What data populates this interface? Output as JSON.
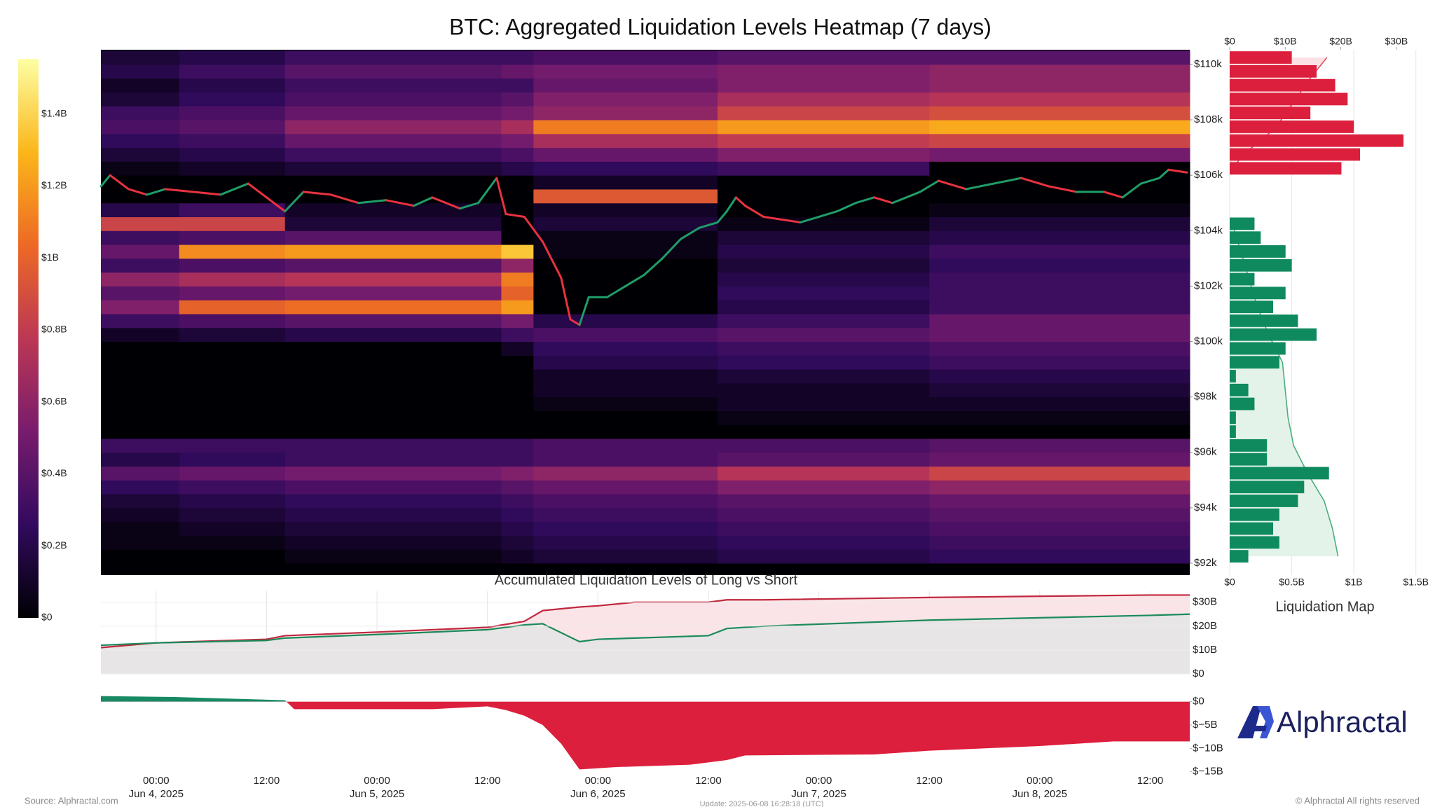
{
  "chart_data": [
    {
      "type": "heatmap",
      "title": "BTC: Aggregated Liquidation Levels Heatmap (7 days)",
      "colormap": [
        "#000004",
        "#320a5e",
        "#781c6d",
        "#bc3754",
        "#ed6925",
        "#fbb61a",
        "#fcffa4"
      ],
      "clim": [
        0,
        1.553
      ],
      "cticks": [
        {
          "value": 0,
          "label": "$0"
        },
        {
          "value": 0.2,
          "label": "$0.2B"
        },
        {
          "value": 0.4,
          "label": "$0.4B"
        },
        {
          "value": 0.6,
          "label": "$0.6B"
        },
        {
          "value": 0.8,
          "label": "$0.8B"
        },
        {
          "value": 1,
          "label": "$1B"
        },
        {
          "value": 1.2,
          "label": "$1.2B"
        },
        {
          "value": 1.4,
          "label": "$1.4B"
        }
      ],
      "xlim": [
        -6,
        112.3
      ],
      "ylim": [
        91.57,
        110.53
      ],
      "yticks": [
        {
          "value": 92,
          "label": "$92k"
        },
        {
          "value": 94,
          "label": "$94k"
        },
        {
          "value": 96,
          "label": "$96k"
        },
        {
          "value": 98,
          "label": "$98k"
        },
        {
          "value": 100,
          "label": "$100k"
        },
        {
          "value": 102,
          "label": "$102k"
        },
        {
          "value": 104,
          "label": "$104k"
        },
        {
          "value": 106,
          "label": "$106k"
        },
        {
          "value": 108,
          "label": "$108k"
        },
        {
          "value": 110,
          "label": "$110k"
        }
      ],
      "x_edges": [
        -6,
        2.5,
        14,
        37.5,
        41,
        61,
        84,
        112.3
      ],
      "price_bins": [
        92,
        92.5,
        93,
        93.5,
        94,
        94.5,
        95,
        95.5,
        96,
        96.5,
        97,
        97.5,
        98,
        98.5,
        99,
        99.5,
        100,
        100.5,
        101,
        101.5,
        102,
        102.5,
        103,
        103.5,
        104,
        104.5,
        105,
        105.5,
        106,
        106.5,
        107,
        107.5,
        108,
        108.5,
        109,
        109.5,
        110,
        110.5
      ],
      "values": [
        [
          0,
          0,
          0.05,
          0.1,
          0.15,
          0.2,
          0.25
        ],
        [
          0.05,
          0.05,
          0.1,
          0.15,
          0.2,
          0.25,
          0.3
        ],
        [
          0.05,
          0.1,
          0.15,
          0.2,
          0.25,
          0.3,
          0.35
        ],
        [
          0.1,
          0.15,
          0.2,
          0.25,
          0.3,
          0.35,
          0.4
        ],
        [
          0.15,
          0.2,
          0.25,
          0.3,
          0.35,
          0.4,
          0.45
        ],
        [
          0.25,
          0.3,
          0.35,
          0.4,
          0.45,
          0.55,
          0.6
        ],
        [
          0.4,
          0.45,
          0.5,
          0.55,
          0.6,
          0.75,
          0.85
        ],
        [
          0.2,
          0.25,
          0.3,
          0.3,
          0.35,
          0.4,
          0.45
        ],
        [
          0.3,
          0.3,
          0.3,
          0.3,
          0.35,
          0.35,
          0.4
        ],
        [
          0,
          0,
          0,
          0,
          0,
          0,
          0
        ],
        [
          0,
          0,
          0,
          0,
          0,
          0.05,
          0.05
        ],
        [
          0,
          0,
          0,
          0,
          0.05,
          0.1,
          0.1
        ],
        [
          0,
          0,
          0,
          0,
          0.1,
          0.1,
          0.15
        ],
        [
          0,
          0,
          0,
          0,
          0.1,
          0.15,
          0.2
        ],
        [
          0,
          0,
          0,
          0,
          0.2,
          0.25,
          0.3
        ],
        [
          0,
          0,
          0,
          0.1,
          0.25,
          0.3,
          0.35
        ],
        [
          0.1,
          0.15,
          0.2,
          0.3,
          0.35,
          0.4,
          0.45
        ],
        [
          0.3,
          0.35,
          0.4,
          0.5,
          0.2,
          0.3,
          0.45
        ],
        [
          0.55,
          1.0,
          1.05,
          1.2,
          0,
          0.2,
          0.3
        ],
        [
          0.4,
          0.45,
          0.5,
          1.0,
          0,
          0.25,
          0.3
        ],
        [
          0.6,
          0.7,
          0.75,
          1.1,
          0,
          0.2,
          0.3
        ],
        [
          0.3,
          0.35,
          0.4,
          0.6,
          0,
          0.15,
          0.25
        ],
        [
          0.45,
          1.15,
          1.2,
          1.35,
          0.05,
          0.2,
          0.3
        ],
        [
          0.3,
          0.35,
          0.4,
          0,
          0.05,
          0.15,
          0.2
        ],
        [
          0.85,
          0.85,
          0.15,
          0,
          0.15,
          0.05,
          0.15
        ],
        [
          0.2,
          0.3,
          0.1,
          0,
          0.1,
          0,
          0.05
        ],
        [
          0,
          0,
          0,
          0,
          0.95,
          0,
          0
        ],
        [
          0,
          0,
          0,
          0,
          0.1,
          0,
          0
        ],
        [
          0.05,
          0.1,
          0.15,
          0.2,
          0.25,
          0.3,
          0
        ],
        [
          0.15,
          0.2,
          0.3,
          0.35,
          0.45,
          0.55,
          0.5
        ],
        [
          0.25,
          0.3,
          0.45,
          0.5,
          0.7,
          0.8,
          0.85
        ],
        [
          0.35,
          0.4,
          0.6,
          0.7,
          1.1,
          1.2,
          1.25
        ],
        [
          0.3,
          0.35,
          0.45,
          0.5,
          0.6,
          0.85,
          0.9
        ],
        [
          0.15,
          0.25,
          0.35,
          0.4,
          0.55,
          0.7,
          0.75
        ],
        [
          0.1,
          0.2,
          0.3,
          0.3,
          0.45,
          0.55,
          0.6
        ],
        [
          0.2,
          0.3,
          0.4,
          0.45,
          0.5,
          0.55,
          0.6
        ],
        [
          0.15,
          0.2,
          0.3,
          0.3,
          0.35,
          0.4,
          0.4
        ]
      ],
      "price": {
        "up_color": "#1f9d6a",
        "down_color": "#e8323f",
        "x": [
          -6,
          -5,
          -3,
          -1,
          1,
          4,
          7,
          10,
          12,
          14,
          16,
          19,
          22,
          25,
          28,
          30,
          33,
          35,
          37,
          38,
          40,
          42,
          44,
          45,
          46,
          47,
          49,
          51,
          53,
          55,
          57,
          59,
          61,
          62,
          63,
          64,
          66,
          68,
          70,
          72,
          74,
          76,
          78,
          80,
          83,
          85,
          88,
          91,
          94,
          97,
          100,
          103,
          105,
          107,
          109,
          110,
          112
        ],
        "values": [
          105.6,
          106.0,
          105.5,
          105.3,
          105.5,
          105.4,
          105.3,
          105.7,
          105.2,
          104.7,
          105.4,
          105.3,
          105.0,
          105.1,
          104.9,
          105.2,
          104.8,
          105.0,
          105.9,
          104.6,
          104.5,
          103.6,
          102.3,
          100.8,
          100.6,
          101.6,
          101.6,
          102.0,
          102.4,
          103.0,
          103.7,
          104.1,
          104.3,
          104.7,
          105.2,
          104.9,
          104.5,
          104.4,
          104.3,
          104.5,
          104.7,
          105.0,
          105.2,
          105.0,
          105.4,
          105.8,
          105.5,
          105.7,
          105.9,
          105.6,
          105.4,
          105.4,
          105.2,
          105.7,
          105.9,
          106.2,
          106.1
        ]
      }
    },
    {
      "type": "bar",
      "title": "Liquidation Map",
      "xlim": [
        0,
        1.62
      ],
      "xticks": [
        {
          "value": 0,
          "label": "$0"
        },
        {
          "value": 0.5,
          "label": "$0.5B"
        },
        {
          "value": 1,
          "label": "$1B"
        },
        {
          "value": 1.5,
          "label": "$1.5B"
        }
      ],
      "x2lim": [
        0,
        36.2
      ],
      "x2ticks": [
        {
          "value": 0,
          "label": "$0"
        },
        {
          "value": 10,
          "label": "$10B"
        },
        {
          "value": 20,
          "label": "$20B"
        },
        {
          "value": 30,
          "label": "$30B"
        }
      ],
      "short_bars": {
        "color": "#dc1f3c",
        "prices": [
          106.25,
          106.75,
          107.25,
          107.75,
          108.25,
          108.75,
          109.25,
          109.75,
          110.25
        ],
        "values": [
          0.9,
          1.05,
          1.4,
          1.0,
          0.65,
          0.95,
          0.85,
          0.7,
          0.5
        ]
      },
      "long_bars": {
        "color": "#0f8a5f",
        "prices": [
          104.25,
          103.75,
          103.25,
          102.75,
          102.25,
          101.75,
          101.25,
          100.75,
          100.25,
          99.75,
          99.25,
          98.75,
          98.25,
          97.75,
          97.25,
          96.75,
          96.25,
          95.75,
          95.25,
          94.75,
          94.25,
          93.75,
          93.25,
          92.75,
          92.25
        ],
        "values": [
          0.2,
          0.25,
          0.45,
          0.5,
          0.2,
          0.45,
          0.35,
          0.55,
          0.7,
          0.45,
          0.4,
          0.05,
          0.15,
          0.2,
          0.05,
          0.05,
          0.3,
          0.3,
          0.8,
          0.6,
          0.55,
          0.4,
          0.35,
          0.4,
          0.15
        ]
      },
      "short_cumulative": {
        "color": "#e05060",
        "fill": "#fbe1e4",
        "prices": [
          106.25,
          106.75,
          107.25,
          107.75,
          108.25,
          108.75,
          109.25,
          109.75,
          110.25
        ],
        "values": [
          0.5,
          2.5,
          5.5,
          8.5,
          10,
          12,
          13.5,
          15.5,
          17.5
        ]
      },
      "long_cumulative": {
        "color": "#4cae7d",
        "fill": "#e3f3ea",
        "prices": [
          104.25,
          103.25,
          102.25,
          101.25,
          100.25,
          99.25,
          98.25,
          97.25,
          96.25,
          95.25,
          94.25,
          93.25,
          92.25
        ],
        "values": [
          0.5,
          2,
          3.5,
          5,
          7,
          9.5,
          10,
          10.5,
          11.5,
          14,
          17,
          18.5,
          19.5
        ]
      }
    },
    {
      "type": "line",
      "title": "Accumulated Liquidation Levels of Long vs Short",
      "ylim": [
        0,
        34.6
      ],
      "yticks": [
        {
          "value": 0,
          "label": "$0"
        },
        {
          "value": 10,
          "label": "$10B"
        },
        {
          "value": 20,
          "label": "$20B"
        },
        {
          "value": 30,
          "label": "$30B"
        }
      ],
      "x": [
        -6,
        0,
        12,
        14,
        24,
        36,
        40,
        42,
        46,
        48,
        52,
        60,
        62,
        66,
        84,
        96,
        108,
        112.3
      ],
      "series": [
        {
          "color": "#c0283e",
          "fill": "#fbe4e7",
          "values": [
            11,
            13,
            14.5,
            16,
            17.5,
            19.5,
            22,
            26.5,
            28,
            28.5,
            30,
            30,
            31,
            31,
            32,
            32.5,
            33,
            33
          ]
        },
        {
          "color": "#1c8a5c",
          "fill": "#e7e5e5",
          "values": [
            12,
            13,
            14,
            15,
            16.5,
            18.5,
            20.5,
            21,
            13.5,
            14.5,
            15,
            16,
            19,
            20,
            22.5,
            23.5,
            24.5,
            25
          ]
        }
      ]
    },
    {
      "type": "area",
      "xlim": [
        -6,
        112.3
      ],
      "ylim": [
        -15.2,
        1.6
      ],
      "yticks": [
        {
          "value": 0,
          "label": "$0"
        },
        {
          "value": -5,
          "label": "$−5B"
        },
        {
          "value": -10,
          "label": "$−10B"
        },
        {
          "value": -15,
          "label": "$−15B"
        }
      ],
      "pos_color": "#178a63",
      "neg_color": "#dc1f3c",
      "x": [
        -6,
        2,
        14,
        15,
        30,
        36,
        38,
        40,
        42,
        44,
        46,
        50,
        58,
        62,
        64,
        78,
        84,
        96,
        104,
        112.3
      ],
      "values": [
        1.2,
        1.0,
        0.3,
        -1.6,
        -1.6,
        -1.0,
        -1.8,
        -3.0,
        -5,
        -9,
        -14.5,
        -14,
        -13.5,
        -12.5,
        -11.5,
        -11.3,
        -10.5,
        -9.5,
        -8.5,
        -8.5
      ],
      "xticks": [
        {
          "value": 0,
          "label": "00:00"
        },
        {
          "value": 12,
          "label": "12:00"
        },
        {
          "value": 24,
          "label": "00:00"
        },
        {
          "value": 36,
          "label": "12:00"
        },
        {
          "value": 48,
          "label": "00:00"
        },
        {
          "value": 60,
          "label": "12:00"
        },
        {
          "value": 72,
          "label": "00:00"
        },
        {
          "value": 84,
          "label": "12:00"
        },
        {
          "value": 96,
          "label": "00:00"
        },
        {
          "value": 108,
          "label": "12:00"
        }
      ],
      "xdates": [
        {
          "value": 0,
          "label": "Jun 4, 2025"
        },
        {
          "value": 24,
          "label": "Jun 5, 2025"
        },
        {
          "value": 48,
          "label": "Jun 6, 2025"
        },
        {
          "value": 72,
          "label": "Jun 7, 2025"
        },
        {
          "value": 96,
          "label": "Jun 8, 2025"
        }
      ]
    }
  ],
  "footer": {
    "source": "Source: Alphractal.com",
    "update": "Update: 2025-06-08 16:28:18 (UTC)",
    "copyright": "© Alphractal All rights reserved"
  },
  "logo": "Alphractal"
}
